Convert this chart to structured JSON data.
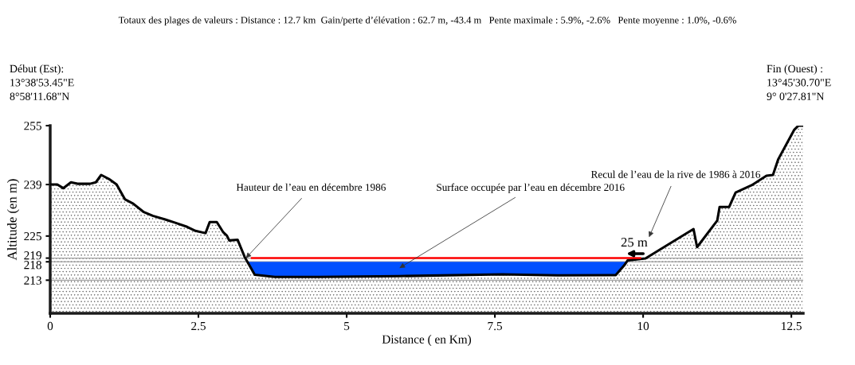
{
  "chart_data": {
    "type": "area",
    "title": "Totaux des plages de valeurs : Distance : 12.7 km  Gain/perte d’élévation : 62.7 m, -43.4 m   Pente maximale : 5.9%, -2.6%   Pente moyenne : 1.0%, -0.6%",
    "xlabel": "Distance ( en Km)",
    "ylabel": "Altitude (en m)",
    "series": [
      {
        "color": "#0050ff",
        "x": [
          3.3,
          9.72
        ],
        "values": [
          218,
          218
        ]
      },
      {
        "color": "#000000",
        "x": [
          0,
          0.12,
          0.22,
          0.35,
          0.46,
          0.67,
          0.77,
          0.86,
          0.99,
          1.12,
          1.26,
          1.4,
          1.57,
          1.73,
          1.94,
          2.11,
          2.31,
          2.45,
          2.62,
          2.69,
          2.81,
          2.92,
          2.98,
          3.02,
          3.16,
          3.28,
          3.45,
          3.79,
          4.53,
          5.87,
          7.62,
          8.56,
          9.54,
          9.68,
          9.74,
          10.04,
          10.85,
          10.91,
          11.25,
          11.29,
          11.45,
          11.56,
          11.83,
          12.08,
          12.19,
          12.28,
          12.55,
          12.62,
          12.7
        ],
        "values": [
          239,
          239,
          238,
          239.6,
          239.2,
          239.2,
          239.6,
          241.6,
          240.5,
          239,
          235,
          233.8,
          231.6,
          230.5,
          229.5,
          228.6,
          227.5,
          226.4,
          225.8,
          228.8,
          228.8,
          226,
          225.1,
          223.8,
          224,
          219.3,
          214.5,
          213.9,
          213.9,
          214.1,
          214.6,
          214.3,
          214.4,
          217,
          218.4,
          218.9,
          226.9,
          222,
          229.2,
          232.9,
          232.9,
          236.8,
          238.8,
          241.4,
          241.6,
          245.9,
          253.9,
          255,
          255
        ]
      },
      {
        "type": "line",
        "color": "#ff0000",
        "x": [
          3.4,
          9.95
        ],
        "values": [
          219,
          219
        ]
      }
    ],
    "xlim": [
      0,
      12.7
    ],
    "ylim": [
      204,
      255
    ],
    "xticks": [
      0,
      2.5,
      5,
      7.5,
      10,
      12.5
    ],
    "yticks": [
      213,
      218,
      219,
      225,
      239,
      255
    ],
    "ref_lines": [
      {
        "axis": "y",
        "value": 213,
        "color": "#a0a0a0"
      },
      {
        "axis": "y",
        "value": 218,
        "color": "#a0a0a0"
      },
      {
        "axis": "y",
        "value": 219,
        "color": "#a0a0a0"
      }
    ],
    "grid": false,
    "annotations": [
      "Début (Est):\n13°38'53.45\"E\n8°58'11.68\"N",
      "Fin (Ouest) :\n13°45'30.70\"E\n9° 0'27.81\"N",
      {
        "text": "Hauteur de l’eau en décembre 1986",
        "x": 3.3,
        "y": 219
      },
      "Surface occupée par l’eau en décembre 2016",
      "Recul de l’eau de la rive de 1986 à 2016",
      "25 m"
    ]
  }
}
